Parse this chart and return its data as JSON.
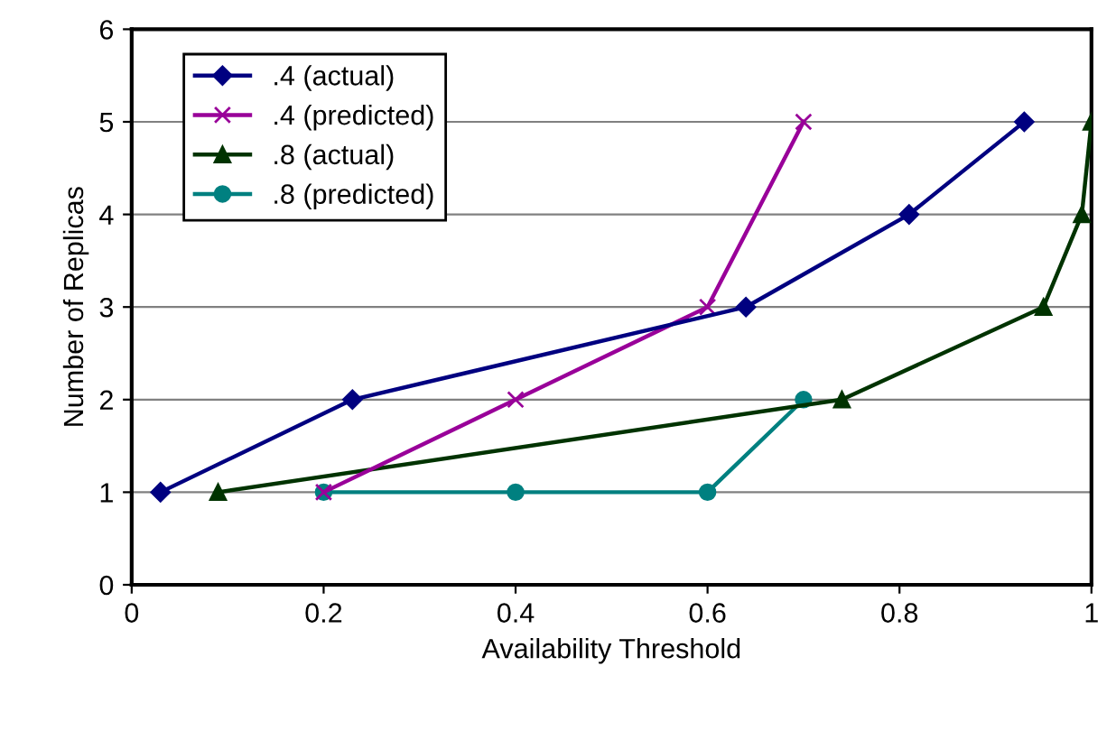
{
  "chart_data": {
    "type": "line",
    "xlabel": "Availability Threshold",
    "ylabel": "Number of Replicas",
    "xlim": [
      0,
      1
    ],
    "xticks": [
      0,
      0.2,
      0.4,
      0.6,
      0.8,
      1
    ],
    "ylim": [
      0,
      6
    ],
    "yticks": [
      0,
      1,
      2,
      3,
      4,
      5,
      6
    ],
    "grid": "y",
    "legend": "top left",
    "series": [
      {
        "name": ".4 (actual)",
        "color": "#000080",
        "marker": "diamond",
        "x": [
          0.03,
          0.23,
          0.64,
          0.81,
          0.93
        ],
        "values": [
          1,
          2,
          3,
          4,
          5
        ]
      },
      {
        "name": ".4 (predicted)",
        "color": "#990099",
        "marker": "cross",
        "x": [
          0.2,
          0.4,
          0.6,
          0.7
        ],
        "values": [
          1,
          2,
          3,
          5
        ]
      },
      {
        "name": ".8 (actual)",
        "color": "#003300",
        "marker": "triangle",
        "x": [
          0.09,
          0.74,
          0.95,
          0.99,
          1.0
        ],
        "values": [
          1,
          2,
          3,
          4,
          5
        ]
      },
      {
        "name": ".8 (predicted)",
        "color": "#008080",
        "marker": "circle",
        "x": [
          0.2,
          0.4,
          0.6,
          0.7
        ],
        "values": [
          1,
          1,
          1,
          2
        ]
      }
    ]
  }
}
